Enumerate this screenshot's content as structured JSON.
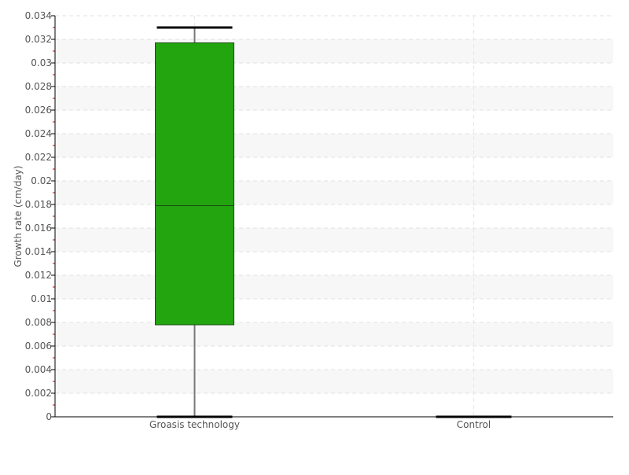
{
  "chart_data": {
    "type": "boxplot",
    "title": "",
    "xlabel": "",
    "ylabel": "Growth rate (cm/day)",
    "ylim": [
      0,
      0.034
    ],
    "yticks": [
      "0",
      "0.002",
      "0.004",
      "0.006",
      "0.008",
      "0.01",
      "0.012",
      "0.014",
      "0.016",
      "0.018",
      "0.02",
      "0.022",
      "0.024",
      "0.026",
      "0.028",
      "0.03",
      "0.032",
      "0.034"
    ],
    "ytick_values": [
      0,
      0.002,
      0.004,
      0.006,
      0.008,
      0.01,
      0.012,
      0.014,
      0.016,
      0.018,
      0.02,
      0.022,
      0.024,
      0.026,
      0.028,
      0.03,
      0.032,
      0.034
    ],
    "grid": true,
    "categories": [
      "Groasis technology",
      "Control"
    ],
    "boxes": [
      {
        "category": "Groasis technology",
        "min": 0,
        "q1": 0.0078,
        "median": 0.0179,
        "q3": 0.0317,
        "max": 0.033,
        "color": "#22a50e"
      },
      {
        "category": "Control",
        "min": 0,
        "q1": 0,
        "median": 0,
        "q3": 0,
        "max": 0,
        "color": "#22a50e"
      }
    ]
  }
}
